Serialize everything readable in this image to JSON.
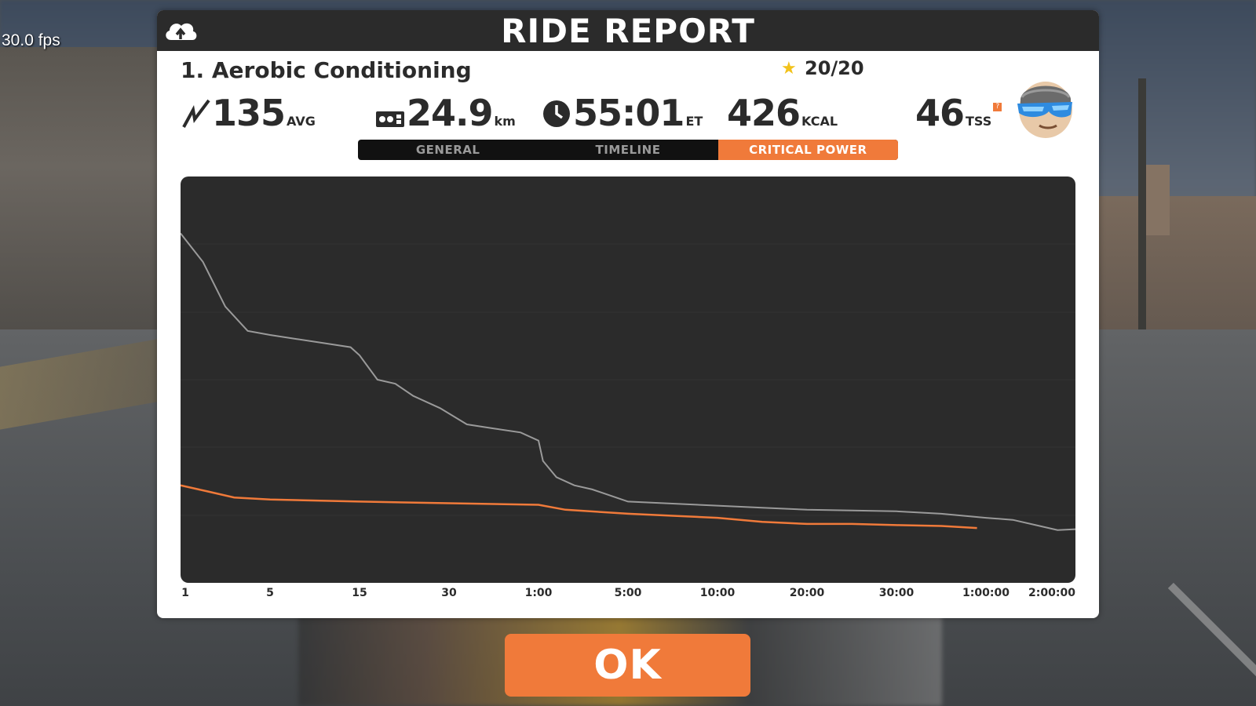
{
  "fps_overlay": "30.0 fps",
  "header": {
    "title": "RIDE REPORT",
    "upload_icon": "cloud-upload-icon"
  },
  "workout": {
    "name": "1. Aerobic Conditioning",
    "stars": "20/20"
  },
  "stats": {
    "power": {
      "value": "135",
      "unit": "AVG",
      "icon": "power-bolt-icon"
    },
    "distance": {
      "value": "24.9",
      "unit": "km",
      "icon": "odometer-icon"
    },
    "time": {
      "value": "55:01",
      "unit": "ET",
      "icon": "clock-icon"
    },
    "kcal": {
      "value": "426",
      "unit": "KCAL"
    },
    "tss": {
      "value": "46",
      "unit": "TSS",
      "help": "?"
    }
  },
  "tabs": [
    {
      "label": "GENERAL",
      "active": false
    },
    {
      "label": "TIMELINE",
      "active": false
    },
    {
      "label": "CRITICAL POWER",
      "active": true
    }
  ],
  "colors": {
    "accent": "#f07a3a",
    "dark": "#2b2b2b",
    "line_best": "#9a9a9a",
    "line_ride": "#f07a3a"
  },
  "chart_data": {
    "type": "line",
    "x_scale": "log",
    "categories": [
      "1",
      "5",
      "15",
      "30",
      "1:00",
      "5:00",
      "10:00",
      "20:00",
      "30:00",
      "1:00:00",
      "2:00:00"
    ],
    "y_ticks_shown": false,
    "series": [
      {
        "color": "#9a9a9a",
        "points": [
          [
            0,
            0.86
          ],
          [
            0.25,
            0.79
          ],
          [
            0.5,
            0.68
          ],
          [
            0.75,
            0.62
          ],
          [
            1,
            0.61
          ],
          [
            1.3,
            0.6
          ],
          [
            1.6,
            0.59
          ],
          [
            1.9,
            0.58
          ],
          [
            2.0,
            0.56
          ],
          [
            2.2,
            0.5
          ],
          [
            2.4,
            0.49
          ],
          [
            2.6,
            0.46
          ],
          [
            2.9,
            0.43
          ],
          [
            3.2,
            0.39
          ],
          [
            3.5,
            0.38
          ],
          [
            3.8,
            0.37
          ],
          [
            4.0,
            0.35
          ],
          [
            4.05,
            0.3
          ],
          [
            4.2,
            0.26
          ],
          [
            4.4,
            0.24
          ],
          [
            4.6,
            0.23
          ],
          [
            5.0,
            0.2
          ],
          [
            5.5,
            0.195
          ],
          [
            6.0,
            0.19
          ],
          [
            6.5,
            0.185
          ],
          [
            7.0,
            0.18
          ],
          [
            7.5,
            0.178
          ],
          [
            8.0,
            0.176
          ],
          [
            8.5,
            0.17
          ],
          [
            9.0,
            0.16
          ],
          [
            9.3,
            0.155
          ],
          [
            9.6,
            0.14
          ],
          [
            9.8,
            0.13
          ],
          [
            10.0,
            0.132
          ]
        ]
      },
      {
        "color": "#f07a3a",
        "points": [
          [
            0,
            0.24
          ],
          [
            0.3,
            0.225
          ],
          [
            0.6,
            0.21
          ],
          [
            1.0,
            0.205
          ],
          [
            2.0,
            0.2
          ],
          [
            3.0,
            0.196
          ],
          [
            4.0,
            0.192
          ],
          [
            4.3,
            0.18
          ],
          [
            5.0,
            0.17
          ],
          [
            5.5,
            0.165
          ],
          [
            6.0,
            0.16
          ],
          [
            6.5,
            0.15
          ],
          [
            7.0,
            0.145
          ],
          [
            7.5,
            0.145
          ],
          [
            8.0,
            0.142
          ],
          [
            8.5,
            0.14
          ],
          [
            8.9,
            0.135
          ]
        ]
      }
    ],
    "note_units": "x in tick-index units on log-time axis; y as fraction of chart height (no y axis labels shown)"
  },
  "ok_button": {
    "label": "OK"
  }
}
